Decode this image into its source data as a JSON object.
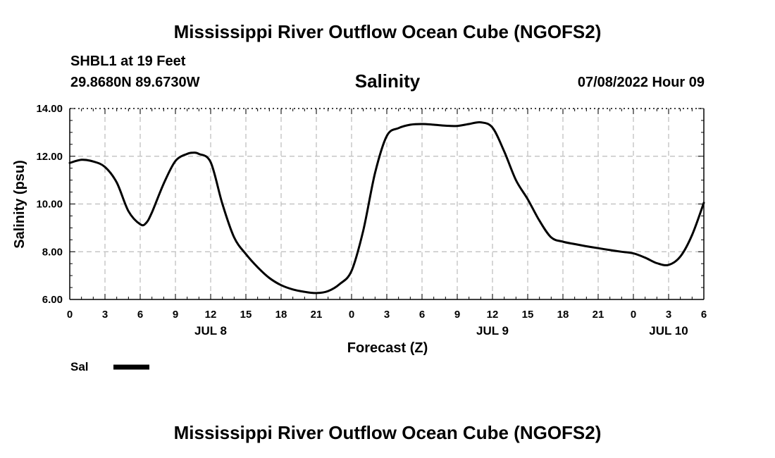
{
  "header": {
    "title": "Mississippi River Outflow Ocean Cube (NGOFS2)",
    "station": "SHBL1 at 19 Feet",
    "coords": "29.8680N  89.6730W",
    "datetime": "07/08/2022 Hour 09"
  },
  "footer": {
    "title": "Mississippi River Outflow Ocean Cube (NGOFS2)"
  },
  "chart_data": {
    "type": "line",
    "title": "Salinity",
    "xlabel": "Forecast (Z)",
    "ylabel": "Salinity (psu)",
    "ylim": [
      6,
      14
    ],
    "xlim": [
      0,
      54
    ],
    "yticks": [
      6,
      8,
      10,
      12,
      14
    ],
    "ytick_labels": [
      "6.00",
      "8.00",
      "10.00",
      "12.00",
      "14.00"
    ],
    "xticks": [
      0,
      3,
      6,
      9,
      12,
      15,
      18,
      21,
      24,
      27,
      30,
      33,
      36,
      39,
      42,
      45,
      48,
      51,
      54
    ],
    "xtick_labels": [
      "0",
      "3",
      "6",
      "9",
      "12",
      "15",
      "18",
      "21",
      "0",
      "3",
      "6",
      "9",
      "12",
      "15",
      "18",
      "21",
      "0",
      "3",
      "6"
    ],
    "date_labels": [
      {
        "x": 12,
        "label": "JUL 8"
      },
      {
        "x": 36,
        "label": "JUL 9"
      },
      {
        "x": 51,
        "label": "JUL 10"
      }
    ],
    "grid": true,
    "line_color": "#000000",
    "series": [
      {
        "name": "Sal",
        "x": [
          0,
          1,
          2,
          3,
          4,
          5,
          6,
          6.5,
          7,
          8,
          9,
          10,
          10.5,
          11,
          12,
          13,
          14,
          15,
          16,
          17,
          18,
          19,
          20,
          21,
          22,
          23,
          24,
          25,
          26,
          27,
          28,
          29,
          30,
          31,
          32,
          33,
          34,
          35,
          36,
          37,
          38,
          39,
          40,
          41,
          42,
          43,
          44,
          45,
          46,
          47,
          48,
          49,
          50,
          51,
          52,
          53,
          54
        ],
        "values": [
          11.72,
          11.85,
          11.78,
          11.55,
          10.9,
          9.7,
          9.15,
          9.2,
          9.65,
          10.85,
          11.8,
          12.1,
          12.15,
          12.1,
          11.75,
          10.0,
          8.6,
          7.9,
          7.35,
          6.9,
          6.6,
          6.42,
          6.32,
          6.27,
          6.35,
          6.65,
          7.2,
          8.9,
          11.3,
          12.85,
          13.18,
          13.32,
          13.35,
          13.32,
          13.28,
          13.27,
          13.35,
          13.42,
          13.2,
          12.2,
          11.0,
          10.2,
          9.3,
          8.6,
          8.42,
          8.32,
          8.23,
          8.15,
          8.07,
          8.0,
          7.93,
          7.75,
          7.52,
          7.45,
          7.8,
          8.7,
          10.05
        ]
      }
    ]
  }
}
